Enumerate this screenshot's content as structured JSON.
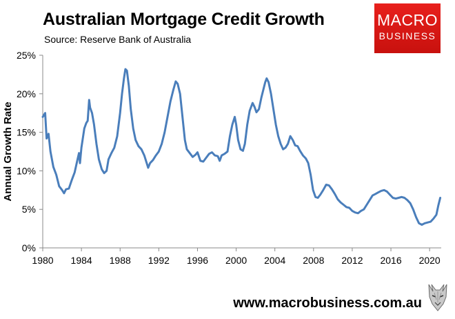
{
  "header": {
    "title": "Australian Mortgage Credit Growth",
    "subtitle": "Source: Reserve Bank of Australia"
  },
  "logo": {
    "line1": "MACRO",
    "line2": "BUSINESS",
    "color": "#d8140f"
  },
  "footer": {
    "website": "www.macrobusiness.com.au"
  },
  "chart_data": {
    "type": "line",
    "title": "Australian Mortgage Credit Growth",
    "xlabel": "",
    "ylabel": "Annual Growth Rate",
    "xlim": [
      1980,
      2021.2
    ],
    "ylim": [
      0,
      25
    ],
    "x_ticks": [
      1980,
      1984,
      1988,
      1992,
      1996,
      2000,
      2004,
      2008,
      2012,
      2016,
      2020
    ],
    "y_ticks": [
      0,
      5,
      10,
      15,
      20,
      25
    ],
    "y_tick_labels": [
      "0%",
      "5%",
      "10%",
      "15%",
      "20%",
      "25%"
    ],
    "grid": false,
    "line_color": "#4a7ebb",
    "series": [
      {
        "points": [
          [
            1980.0,
            17.0
          ],
          [
            1980.25,
            17.5
          ],
          [
            1980.4,
            14.2
          ],
          [
            1980.6,
            14.8
          ],
          [
            1980.8,
            12.5
          ],
          [
            1981.1,
            10.5
          ],
          [
            1981.4,
            9.5
          ],
          [
            1981.7,
            8.0
          ],
          [
            1982.0,
            7.5
          ],
          [
            1982.2,
            7.1
          ],
          [
            1982.4,
            7.6
          ],
          [
            1982.7,
            7.7
          ],
          [
            1983.0,
            8.8
          ],
          [
            1983.3,
            9.8
          ],
          [
            1983.6,
            11.5
          ],
          [
            1983.75,
            12.3
          ],
          [
            1983.85,
            11.0
          ],
          [
            1984.0,
            13.0
          ],
          [
            1984.3,
            15.5
          ],
          [
            1984.5,
            16.2
          ],
          [
            1984.65,
            16.5
          ],
          [
            1984.8,
            19.2
          ],
          [
            1984.9,
            18.2
          ],
          [
            1985.1,
            17.5
          ],
          [
            1985.3,
            16.0
          ],
          [
            1985.55,
            13.5
          ],
          [
            1985.8,
            11.5
          ],
          [
            1986.1,
            10.2
          ],
          [
            1986.35,
            9.7
          ],
          [
            1986.6,
            10.0
          ],
          [
            1986.8,
            11.5
          ],
          [
            1987.1,
            12.3
          ],
          [
            1987.4,
            13.0
          ],
          [
            1987.7,
            14.5
          ],
          [
            1988.0,
            17.5
          ],
          [
            1988.2,
            20.0
          ],
          [
            1988.4,
            22.0
          ],
          [
            1988.55,
            23.2
          ],
          [
            1988.7,
            23.0
          ],
          [
            1988.9,
            21.0
          ],
          [
            1989.1,
            18.0
          ],
          [
            1989.35,
            15.5
          ],
          [
            1989.6,
            14.0
          ],
          [
            1989.9,
            13.2
          ],
          [
            1990.2,
            12.8
          ],
          [
            1990.5,
            12.0
          ],
          [
            1990.75,
            11.0
          ],
          [
            1990.9,
            10.4
          ],
          [
            1991.1,
            11.0
          ],
          [
            1991.4,
            11.4
          ],
          [
            1991.7,
            12.0
          ],
          [
            1992.0,
            12.5
          ],
          [
            1992.3,
            13.5
          ],
          [
            1992.6,
            15.0
          ],
          [
            1992.9,
            17.0
          ],
          [
            1993.2,
            19.0
          ],
          [
            1993.5,
            20.5
          ],
          [
            1993.75,
            21.6
          ],
          [
            1993.95,
            21.3
          ],
          [
            1994.2,
            20.0
          ],
          [
            1994.45,
            17.0
          ],
          [
            1994.7,
            14.0
          ],
          [
            1994.9,
            12.8
          ],
          [
            1995.2,
            12.3
          ],
          [
            1995.5,
            11.8
          ],
          [
            1995.8,
            12.1
          ],
          [
            1996.0,
            12.4
          ],
          [
            1996.3,
            11.3
          ],
          [
            1996.6,
            11.2
          ],
          [
            1996.9,
            11.7
          ],
          [
            1997.2,
            12.2
          ],
          [
            1997.5,
            12.4
          ],
          [
            1997.8,
            12.0
          ],
          [
            1998.1,
            11.9
          ],
          [
            1998.3,
            11.3
          ],
          [
            1998.5,
            12.0
          ],
          [
            1998.8,
            12.2
          ],
          [
            1999.1,
            12.5
          ],
          [
            1999.35,
            14.5
          ],
          [
            1999.6,
            16.0
          ],
          [
            1999.85,
            17.0
          ],
          [
            2000.0,
            16.0
          ],
          [
            2000.2,
            14.0
          ],
          [
            2000.45,
            12.8
          ],
          [
            2000.7,
            12.6
          ],
          [
            2000.9,
            13.5
          ],
          [
            2001.15,
            16.0
          ],
          [
            2001.4,
            17.8
          ],
          [
            2001.7,
            18.8
          ],
          [
            2001.9,
            18.3
          ],
          [
            2002.1,
            17.6
          ],
          [
            2002.35,
            18.0
          ],
          [
            2002.6,
            19.5
          ],
          [
            2002.8,
            20.5
          ],
          [
            2003.0,
            21.5
          ],
          [
            2003.15,
            22.0
          ],
          [
            2003.35,
            21.5
          ],
          [
            2003.6,
            20.0
          ],
          [
            2003.85,
            18.0
          ],
          [
            2004.1,
            16.0
          ],
          [
            2004.35,
            14.5
          ],
          [
            2004.6,
            13.5
          ],
          [
            2004.85,
            12.8
          ],
          [
            2005.1,
            13.0
          ],
          [
            2005.35,
            13.5
          ],
          [
            2005.6,
            14.5
          ],
          [
            2005.85,
            14.0
          ],
          [
            2006.1,
            13.3
          ],
          [
            2006.35,
            13.2
          ],
          [
            2006.6,
            12.6
          ],
          [
            2006.9,
            12.0
          ],
          [
            2007.2,
            11.6
          ],
          [
            2007.45,
            11.0
          ],
          [
            2007.7,
            9.5
          ],
          [
            2007.95,
            7.5
          ],
          [
            2008.2,
            6.6
          ],
          [
            2008.45,
            6.5
          ],
          [
            2008.7,
            6.9
          ],
          [
            2009.0,
            7.5
          ],
          [
            2009.3,
            8.2
          ],
          [
            2009.6,
            8.1
          ],
          [
            2009.9,
            7.6
          ],
          [
            2010.2,
            7.0
          ],
          [
            2010.5,
            6.3
          ],
          [
            2010.8,
            5.9
          ],
          [
            2011.1,
            5.6
          ],
          [
            2011.4,
            5.3
          ],
          [
            2011.7,
            5.2
          ],
          [
            2012.0,
            4.8
          ],
          [
            2012.3,
            4.6
          ],
          [
            2012.6,
            4.5
          ],
          [
            2012.9,
            4.8
          ],
          [
            2013.2,
            5.0
          ],
          [
            2013.5,
            5.6
          ],
          [
            2013.8,
            6.2
          ],
          [
            2014.1,
            6.8
          ],
          [
            2014.4,
            7.0
          ],
          [
            2014.7,
            7.2
          ],
          [
            2015.0,
            7.4
          ],
          [
            2015.3,
            7.5
          ],
          [
            2015.6,
            7.3
          ],
          [
            2015.9,
            6.9
          ],
          [
            2016.2,
            6.5
          ],
          [
            2016.5,
            6.4
          ],
          [
            2016.8,
            6.5
          ],
          [
            2017.1,
            6.6
          ],
          [
            2017.4,
            6.5
          ],
          [
            2017.7,
            6.2
          ],
          [
            2018.0,
            5.8
          ],
          [
            2018.3,
            5.0
          ],
          [
            2018.6,
            4.0
          ],
          [
            2018.9,
            3.2
          ],
          [
            2019.2,
            3.0
          ],
          [
            2019.5,
            3.2
          ],
          [
            2019.8,
            3.3
          ],
          [
            2020.1,
            3.4
          ],
          [
            2020.4,
            3.8
          ],
          [
            2020.7,
            4.3
          ],
          [
            2020.9,
            5.5
          ],
          [
            2021.1,
            6.5
          ]
        ]
      }
    ]
  }
}
